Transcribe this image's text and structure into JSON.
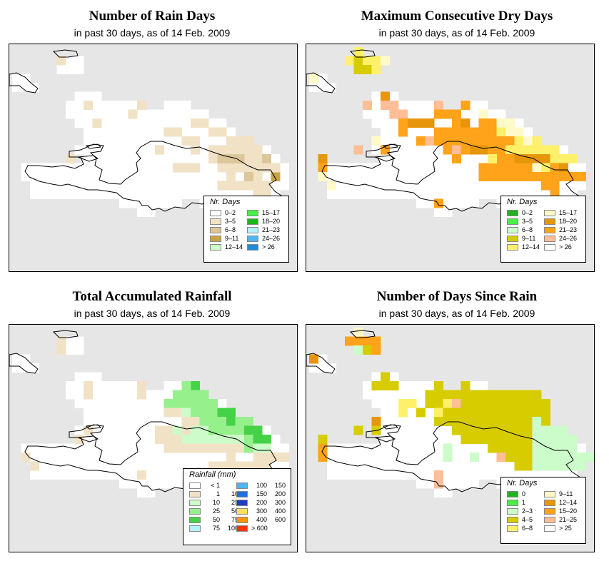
{
  "panels": [
    {
      "title": "Number of Rain Days",
      "subtitle": "in past 30 days, as of  14 Feb. 2009",
      "legend_title": "Nr. Days",
      "legend": [
        {
          "label": "0–2",
          "color": "#ffffff"
        },
        {
          "label": "3–5",
          "color": "#f1e2c6"
        },
        {
          "label": "6–8",
          "color": "#dcc79a"
        },
        {
          "label": "9–11",
          "color": "#c9a445"
        },
        {
          "label": "12–14",
          "color": "#ccfcc9"
        },
        {
          "label": "15–17",
          "color": "#46f046"
        },
        {
          "label": "18–20",
          "color": "#1eb41e"
        },
        {
          "label": "21–23",
          "color": "#b4f0fa"
        },
        {
          "label": "24–26",
          "color": "#50b4f0"
        },
        {
          "label": "> 26",
          "color": "#1e8cd2"
        }
      ]
    },
    {
      "title": "Maximum Consecutive Dry Days",
      "subtitle": "in past 30 days, as of  14 Feb. 2009",
      "legend_title": "Nr. Days",
      "legend": [
        {
          "label": "0–2",
          "color": "#1eb41e"
        },
        {
          "label": "3–5",
          "color": "#46f046"
        },
        {
          "label": "6–8",
          "color": "#ccfcc9"
        },
        {
          "label": "9–11",
          "color": "#d7cc00"
        },
        {
          "label": "12–14",
          "color": "#fff06a"
        },
        {
          "label": "15–17",
          "color": "#fffac8"
        },
        {
          "label": "18–20",
          "color": "#e6960a"
        },
        {
          "label": "21–23",
          "color": "#ffa31a"
        },
        {
          "label": "24–26",
          "color": "#ffbe96"
        },
        {
          "label": "> 26",
          "color": "#ffffff"
        }
      ]
    },
    {
      "title": "Total Accumulated Rainfall",
      "subtitle": "in past 30 days, as of  14 Feb. 2009",
      "legend_title": "Rainfall (mm)",
      "legend": [
        {
          "a": "< 1",
          "b": "",
          "color": "#ffffff"
        },
        {
          "a": "1",
          "b": "10",
          "color": "#f1e2c6"
        },
        {
          "a": "10",
          "b": "25",
          "color": "#ccfcc9"
        },
        {
          "a": "25",
          "b": "50",
          "color": "#96f08c"
        },
        {
          "a": "50",
          "b": "75",
          "color": "#46d246"
        },
        {
          "a": "75",
          "b": "100",
          "color": "#b4f0fa"
        },
        {
          "a": "100",
          "b": "150",
          "color": "#50b4f0"
        },
        {
          "a": "150",
          "b": "200",
          "color": "#1e6ee6"
        },
        {
          "a": "200",
          "b": "300",
          "color": "#1e3cc8"
        },
        {
          "a": "300",
          "b": "400",
          "color": "#ffe05a"
        },
        {
          "a": "400",
          "b": "600",
          "color": "#ff9600"
        },
        {
          "a": "> 600",
          "b": "",
          "color": "#ff3200"
        }
      ]
    },
    {
      "title": "Number of Days Since Rain",
      "subtitle": "in past 30 days, as of  14 Feb. 2009",
      "legend_title": "Nr. Days",
      "legend": [
        {
          "label": "0",
          "color": "#1eb41e"
        },
        {
          "label": "1",
          "color": "#46f046"
        },
        {
          "label": "2–3",
          "color": "#ccfcc9"
        },
        {
          "label": "4–5",
          "color": "#d7cc00"
        },
        {
          "label": "6–8",
          "color": "#fff06a"
        },
        {
          "label": "9–11",
          "color": "#fffac8"
        },
        {
          "label": "12–14",
          "color": "#e6960a"
        },
        {
          "label": "15–20",
          "color": "#ffa31a"
        },
        {
          "label": "21–25",
          "color": "#ffbe96"
        },
        {
          "label": "> 25",
          "color": "#ffffff"
        }
      ]
    }
  ]
}
